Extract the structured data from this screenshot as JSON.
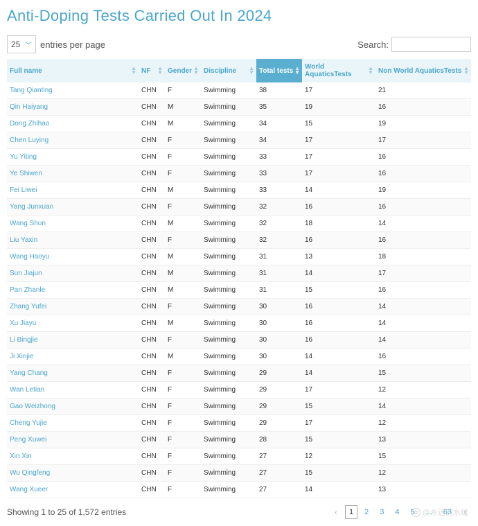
{
  "title": "Anti-Doping Tests Carried Out In 2024",
  "entries_value": "25",
  "entries_label": "entries per page",
  "search_label": "Search:",
  "columns": {
    "full_name": "Full name",
    "nf": "NF",
    "gender": "Gender",
    "discipline": "Discipline",
    "total_tests": "Total tests",
    "wa_tests": "World AquaticsTests",
    "nwa_tests": "Non World AquaticsTests"
  },
  "rows": [
    {
      "name": "Tang Qianting",
      "nf": "CHN",
      "g": "F",
      "disc": "Swimming",
      "t": "38",
      "wa": "17",
      "nwa": "21"
    },
    {
      "name": "Qin Haiyang",
      "nf": "CHN",
      "g": "M",
      "disc": "Swimming",
      "t": "35",
      "wa": "19",
      "nwa": "16"
    },
    {
      "name": "Dong Zhihao",
      "nf": "CHN",
      "g": "M",
      "disc": "Swimming",
      "t": "34",
      "wa": "15",
      "nwa": "19"
    },
    {
      "name": "Chen Luying",
      "nf": "CHN",
      "g": "F",
      "disc": "Swimming",
      "t": "34",
      "wa": "17",
      "nwa": "17"
    },
    {
      "name": "Yu Yiting",
      "nf": "CHN",
      "g": "F",
      "disc": "Swimming",
      "t": "33",
      "wa": "17",
      "nwa": "16"
    },
    {
      "name": "Ye Shiwen",
      "nf": "CHN",
      "g": "F",
      "disc": "Swimming",
      "t": "33",
      "wa": "17",
      "nwa": "16"
    },
    {
      "name": "Fei Liwei",
      "nf": "CHN",
      "g": "M",
      "disc": "Swimming",
      "t": "33",
      "wa": "14",
      "nwa": "19"
    },
    {
      "name": "Yang Junxuan",
      "nf": "CHN",
      "g": "F",
      "disc": "Swimming",
      "t": "32",
      "wa": "16",
      "nwa": "16"
    },
    {
      "name": "Wang Shun",
      "nf": "CHN",
      "g": "M",
      "disc": "Swimming",
      "t": "32",
      "wa": "18",
      "nwa": "14"
    },
    {
      "name": "Liu Yaxin",
      "nf": "CHN",
      "g": "F",
      "disc": "Swimming",
      "t": "32",
      "wa": "16",
      "nwa": "16"
    },
    {
      "name": "Wang Haoyu",
      "nf": "CHN",
      "g": "M",
      "disc": "Swimming",
      "t": "31",
      "wa": "13",
      "nwa": "18"
    },
    {
      "name": "Sun Jiajun",
      "nf": "CHN",
      "g": "M",
      "disc": "Swimming",
      "t": "31",
      "wa": "14",
      "nwa": "17"
    },
    {
      "name": "Pan Zhanle",
      "nf": "CHN",
      "g": "M",
      "disc": "Swimming",
      "t": "31",
      "wa": "15",
      "nwa": "16"
    },
    {
      "name": "Zhang Yufei",
      "nf": "CHN",
      "g": "F",
      "disc": "Swimming",
      "t": "30",
      "wa": "16",
      "nwa": "14"
    },
    {
      "name": "Xu Jiayu",
      "nf": "CHN",
      "g": "M",
      "disc": "Swimming",
      "t": "30",
      "wa": "16",
      "nwa": "14"
    },
    {
      "name": "Li Bingjie",
      "nf": "CHN",
      "g": "F",
      "disc": "Swimming",
      "t": "30",
      "wa": "16",
      "nwa": "14"
    },
    {
      "name": "Ji Xinjie",
      "nf": "CHN",
      "g": "M",
      "disc": "Swimming",
      "t": "30",
      "wa": "14",
      "nwa": "16"
    },
    {
      "name": "Yang Chang",
      "nf": "CHN",
      "g": "F",
      "disc": "Swimming",
      "t": "29",
      "wa": "14",
      "nwa": "15"
    },
    {
      "name": "Wan Letian",
      "nf": "CHN",
      "g": "F",
      "disc": "Swimming",
      "t": "29",
      "wa": "17",
      "nwa": "12"
    },
    {
      "name": "Gao Weizhong",
      "nf": "CHN",
      "g": "F",
      "disc": "Swimming",
      "t": "29",
      "wa": "15",
      "nwa": "14"
    },
    {
      "name": "Cheng Yujie",
      "nf": "CHN",
      "g": "F",
      "disc": "Swimming",
      "t": "29",
      "wa": "17",
      "nwa": "12"
    },
    {
      "name": "Peng Xuwei",
      "nf": "CHN",
      "g": "F",
      "disc": "Swimming",
      "t": "28",
      "wa": "15",
      "nwa": "13"
    },
    {
      "name": "Xin Xin",
      "nf": "CHN",
      "g": "F",
      "disc": "Swimming",
      "t": "27",
      "wa": "12",
      "nwa": "15"
    },
    {
      "name": "Wu Qingfeng",
      "nf": "CHN",
      "g": "F",
      "disc": "Swimming",
      "t": "27",
      "wa": "15",
      "nwa": "12"
    },
    {
      "name": "Wang Xueer",
      "nf": "CHN",
      "g": "F",
      "disc": "Swimming",
      "t": "27",
      "wa": "14",
      "nwa": "13"
    }
  ],
  "footer_info": "Showing 1 to 25 of 1,572 entries",
  "pages": [
    "1",
    "2",
    "3",
    "4",
    "5",
    "...",
    "63"
  ],
  "watermark": "@永远的水线"
}
